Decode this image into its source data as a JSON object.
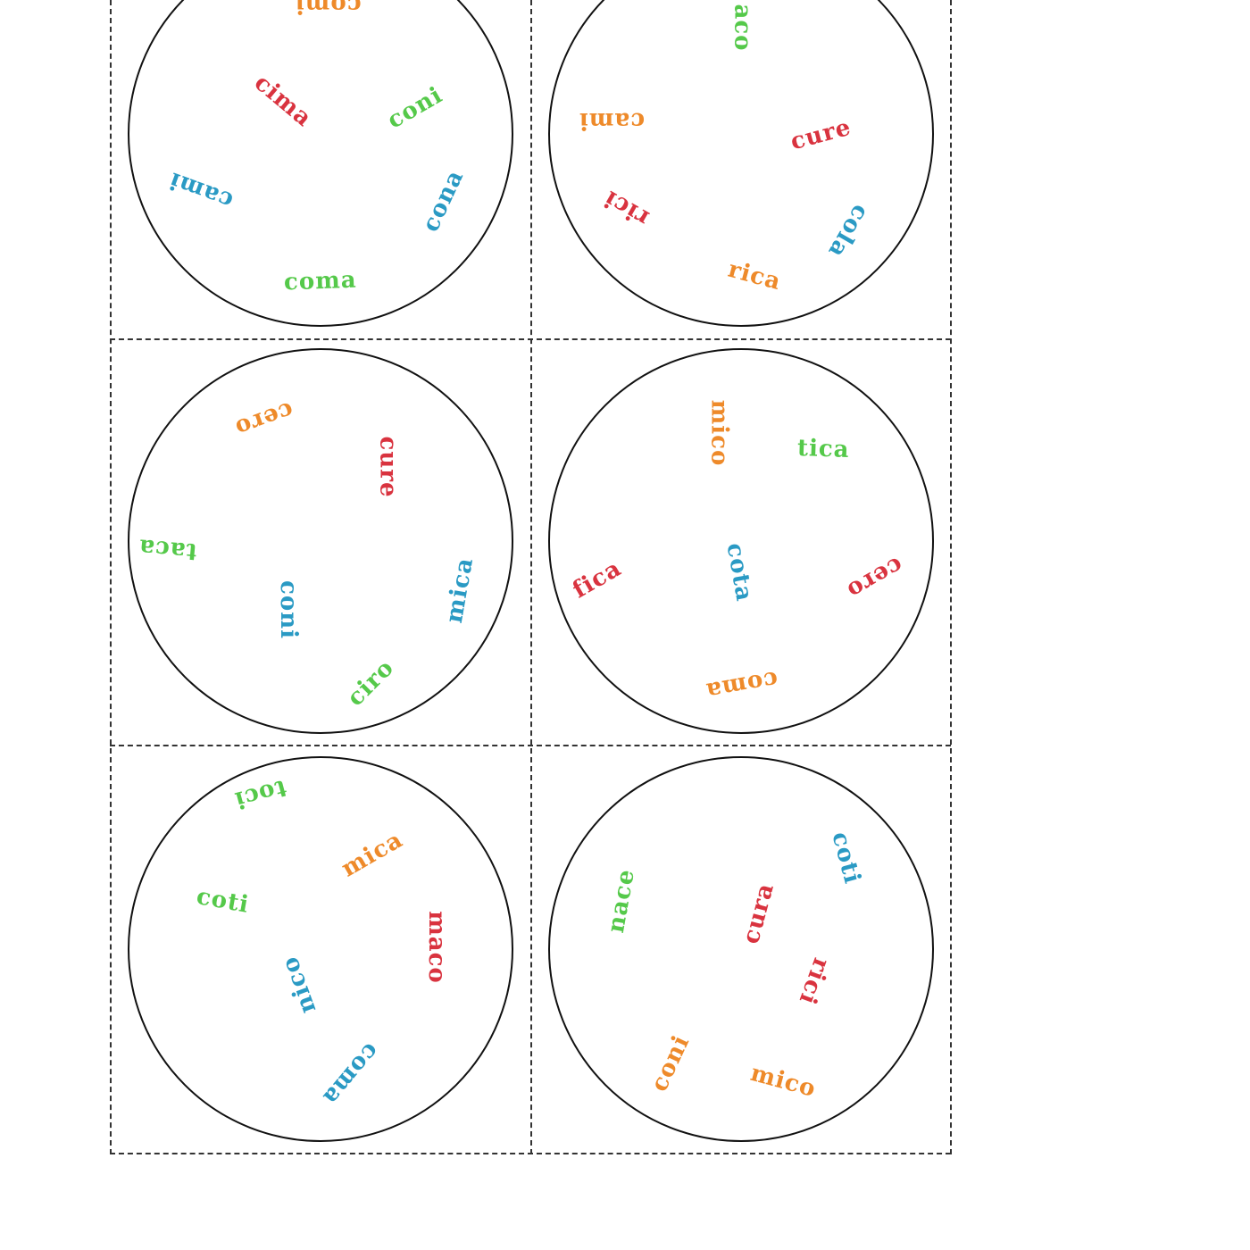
{
  "colors": {
    "red": "#d9333f",
    "green": "#55c94a",
    "blue": "#2a9ac4",
    "orange": "#ee8a2a",
    "circle_stroke": "#111111",
    "cut_line": "#333333"
  },
  "cards": [
    {
      "words": [
        {
          "text": "comi",
          "color": "orange"
        },
        {
          "text": "cima",
          "color": "red"
        },
        {
          "text": "coni",
          "color": "green"
        },
        {
          "text": "cami",
          "color": "blue"
        },
        {
          "text": "cona",
          "color": "blue"
        },
        {
          "text": "coma",
          "color": "green"
        }
      ]
    },
    {
      "words": [
        {
          "text": "aco",
          "color": "green"
        },
        {
          "text": "cami",
          "color": "orange"
        },
        {
          "text": "cure",
          "color": "red"
        },
        {
          "text": "rici",
          "color": "red"
        },
        {
          "text": "cola",
          "color": "blue"
        },
        {
          "text": "rica",
          "color": "orange"
        }
      ]
    },
    {
      "words": [
        {
          "text": "cero",
          "color": "orange"
        },
        {
          "text": "cure",
          "color": "red"
        },
        {
          "text": "taca",
          "color": "green"
        },
        {
          "text": "coni",
          "color": "blue"
        },
        {
          "text": "mica",
          "color": "blue"
        },
        {
          "text": "ciro",
          "color": "green"
        }
      ]
    },
    {
      "words": [
        {
          "text": "mico",
          "color": "orange"
        },
        {
          "text": "tica",
          "color": "green"
        },
        {
          "text": "fica",
          "color": "red"
        },
        {
          "text": "cota",
          "color": "blue"
        },
        {
          "text": "cero",
          "color": "red"
        },
        {
          "text": "coma",
          "color": "orange"
        }
      ]
    },
    {
      "words": [
        {
          "text": "toci",
          "color": "green"
        },
        {
          "text": "mica",
          "color": "orange"
        },
        {
          "text": "coti",
          "color": "green"
        },
        {
          "text": "maco",
          "color": "red"
        },
        {
          "text": "nico",
          "color": "blue"
        },
        {
          "text": "coma",
          "color": "blue"
        }
      ]
    },
    {
      "words": [
        {
          "text": "coti",
          "color": "blue"
        },
        {
          "text": "nace",
          "color": "green"
        },
        {
          "text": "cura",
          "color": "red"
        },
        {
          "text": "rici",
          "color": "red"
        },
        {
          "text": "coni",
          "color": "orange"
        },
        {
          "text": "mico",
          "color": "orange"
        }
      ]
    }
  ]
}
